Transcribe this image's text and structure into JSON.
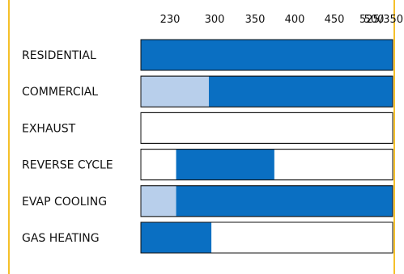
{
  "chart_data": {
    "type": "bar",
    "column_labels": [
      "230",
      "300",
      "350",
      "400",
      "450",
      "500",
      "525/350"
    ],
    "rows": [
      {
        "label": "RESIDENTIAL",
        "segments": [
          {
            "start": 0,
            "end": 1.0,
            "shade": "dark"
          }
        ]
      },
      {
        "label": "COMMERCIAL",
        "segments": [
          {
            "start": 0,
            "end": 0.27,
            "shade": "light"
          },
          {
            "start": 0.27,
            "end": 1.0,
            "shade": "dark"
          }
        ]
      },
      {
        "label": "EXHAUST",
        "segments": []
      },
      {
        "label": "REVERSE CYCLE",
        "segments": [
          {
            "start": 0.14,
            "end": 0.53,
            "shade": "dark"
          }
        ]
      },
      {
        "label": "EVAP COOLING",
        "segments": [
          {
            "start": 0,
            "end": 0.14,
            "shade": "light"
          },
          {
            "start": 0.14,
            "end": 1.0,
            "shade": "dark"
          }
        ]
      },
      {
        "label": "GAS HEATING",
        "segments": [
          {
            "start": 0,
            "end": 0.28,
            "shade": "dark"
          }
        ]
      }
    ],
    "colors": {
      "dark": "#0a6fc2",
      "light": "#b8cfeb",
      "border": "#f5c02a",
      "row_outline": "#111111"
    }
  }
}
